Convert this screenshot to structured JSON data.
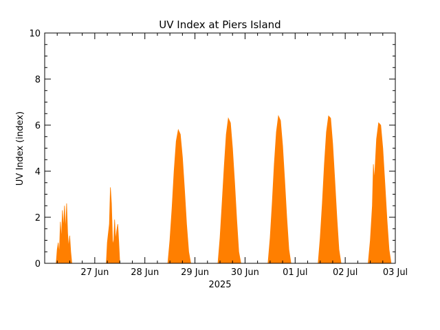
{
  "chart_data": {
    "type": "area",
    "title": "UV Index at Piers Island",
    "ylabel": "UV Index (index)",
    "xlabel": "2025",
    "ylim": [
      0,
      10
    ],
    "yticks": [
      0,
      2,
      4,
      6,
      8,
      10
    ],
    "xlim": [
      "2025-06-26T00:00",
      "2025-07-03T00:00"
    ],
    "xtick_labels": [
      "27 Jun",
      "28 Jun",
      "29 Jun",
      "30 Jun",
      "01 Jul",
      "02 Jul",
      "03 Jul"
    ],
    "xtick_dates": [
      "2025-06-27",
      "2025-06-28",
      "2025-06-29",
      "2025-06-30",
      "2025-07-01",
      "2025-07-02",
      "2025-07-03"
    ],
    "grid": false,
    "color": "#ff7f00",
    "series": [
      {
        "points": [
          [
            "2025-06-26T05:30",
            0.0
          ],
          [
            "2025-06-26T06:00",
            0.6
          ],
          [
            "2025-06-26T06:30",
            0.9
          ],
          [
            "2025-06-26T07:00",
            0.4
          ],
          [
            "2025-06-26T07:30",
            1.8
          ],
          [
            "2025-06-26T08:00",
            1.0
          ],
          [
            "2025-06-26T08:30",
            2.3
          ],
          [
            "2025-06-26T09:00",
            1.5
          ],
          [
            "2025-06-26T09:30",
            2.5
          ],
          [
            "2025-06-26T10:00",
            1.4
          ],
          [
            "2025-06-26T10:30",
            2.6
          ],
          [
            "2025-06-26T11:00",
            1.3
          ],
          [
            "2025-06-26T11:30",
            0.7
          ],
          [
            "2025-06-26T12:00",
            1.2
          ],
          [
            "2025-06-26T12:30",
            0.5
          ],
          [
            "2025-06-26T13:00",
            0.0
          ],
          [
            "2025-06-27T05:30",
            0.0
          ],
          [
            "2025-06-27T06:00",
            0.9
          ],
          [
            "2025-06-27T06:30",
            1.3
          ],
          [
            "2025-06-27T07:00",
            1.7
          ],
          [
            "2025-06-27T07:30",
            3.3
          ],
          [
            "2025-06-27T08:00",
            2.6
          ],
          [
            "2025-06-27T08:30",
            1.0
          ],
          [
            "2025-06-27T09:00",
            0.8
          ],
          [
            "2025-06-27T09:30",
            1.9
          ],
          [
            "2025-06-27T10:00",
            1.0
          ],
          [
            "2025-06-27T10:30",
            1.4
          ],
          [
            "2025-06-27T11:00",
            1.7
          ],
          [
            "2025-06-27T11:30",
            0.9
          ],
          [
            "2025-06-27T12:00",
            0.0
          ],
          [
            "2025-06-28T11:00",
            0.0
          ],
          [
            "2025-06-28T12:00",
            1.0
          ],
          [
            "2025-06-28T13:00",
            2.4
          ],
          [
            "2025-06-28T14:00",
            4.0
          ],
          [
            "2025-06-28T15:00",
            5.3
          ],
          [
            "2025-06-28T16:00",
            5.8
          ],
          [
            "2025-06-28T17:00",
            5.6
          ],
          [
            "2025-06-28T18:00",
            4.6
          ],
          [
            "2025-06-28T19:00",
            3.2
          ],
          [
            "2025-06-28T20:00",
            1.7
          ],
          [
            "2025-06-28T21:00",
            0.5
          ],
          [
            "2025-06-28T22:00",
            0.0
          ],
          [
            "2025-06-29T11:00",
            0.0
          ],
          [
            "2025-06-29T12:00",
            1.1
          ],
          [
            "2025-06-29T13:00",
            2.6
          ],
          [
            "2025-06-29T14:00",
            4.2
          ],
          [
            "2025-06-29T15:00",
            5.6
          ],
          [
            "2025-06-29T16:00",
            6.3
          ],
          [
            "2025-06-29T17:00",
            6.1
          ],
          [
            "2025-06-29T18:00",
            5.0
          ],
          [
            "2025-06-29T19:00",
            3.5
          ],
          [
            "2025-06-29T20:00",
            1.9
          ],
          [
            "2025-06-29T21:00",
            0.5
          ],
          [
            "2025-06-29T22:00",
            0.0
          ],
          [
            "2025-06-30T11:00",
            0.0
          ],
          [
            "2025-06-30T12:00",
            1.1
          ],
          [
            "2025-06-30T13:00",
            2.6
          ],
          [
            "2025-06-30T14:00",
            4.3
          ],
          [
            "2025-06-30T15:00",
            5.7
          ],
          [
            "2025-06-30T16:00",
            6.4
          ],
          [
            "2025-06-30T17:00",
            6.2
          ],
          [
            "2025-06-30T18:00",
            5.1
          ],
          [
            "2025-06-30T19:00",
            3.6
          ],
          [
            "2025-06-30T20:00",
            2.0
          ],
          [
            "2025-06-30T21:00",
            0.6
          ],
          [
            "2025-06-30T22:00",
            0.0
          ],
          [
            "2025-07-01T11:00",
            0.0
          ],
          [
            "2025-07-01T12:00",
            1.1
          ],
          [
            "2025-07-01T13:00",
            2.6
          ],
          [
            "2025-07-01T14:00",
            4.3
          ],
          [
            "2025-07-01T15:00",
            5.7
          ],
          [
            "2025-07-01T16:00",
            6.4
          ],
          [
            "2025-07-01T17:00",
            6.3
          ],
          [
            "2025-07-01T18:00",
            5.2
          ],
          [
            "2025-07-01T19:00",
            3.6
          ],
          [
            "2025-07-01T20:00",
            2.0
          ],
          [
            "2025-07-01T21:00",
            0.6
          ],
          [
            "2025-07-01T22:00",
            0.0
          ],
          [
            "2025-07-02T11:00",
            0.0
          ],
          [
            "2025-07-02T12:00",
            1.0
          ],
          [
            "2025-07-02T13:00",
            2.5
          ],
          [
            "2025-07-02T13:30",
            4.3
          ],
          [
            "2025-07-02T14:00",
            3.6
          ],
          [
            "2025-07-02T15:00",
            5.4
          ],
          [
            "2025-07-02T16:00",
            6.1
          ],
          [
            "2025-07-02T17:00",
            6.0
          ],
          [
            "2025-07-02T18:00",
            5.0
          ],
          [
            "2025-07-02T19:00",
            3.5
          ],
          [
            "2025-07-02T20:00",
            1.9
          ],
          [
            "2025-07-02T21:00",
            0.6
          ],
          [
            "2025-07-02T22:00",
            0.0
          ]
        ]
      }
    ]
  }
}
